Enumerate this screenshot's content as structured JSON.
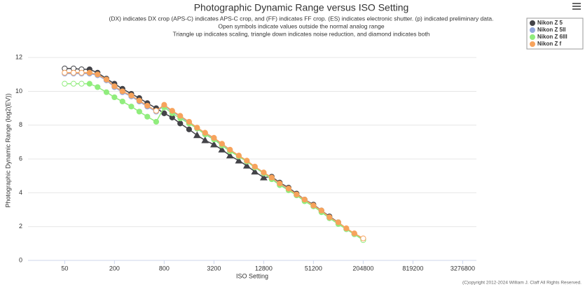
{
  "chart_data": {
    "type": "line",
    "title": "Photographic Dynamic Range versus ISO Setting",
    "subtitle": [
      "(DX) indicates DX crop (APS-C) indicates APS-C crop, and (FF) indicates FF crop. (ES) indicates electronic shutter. (p) indicated preliminary data.",
      "Open symbols indicate values outside the normal analog range",
      "Triangle up indicates scaling, triangle down indicates noise reduction, and diamond indicates both"
    ],
    "x_label": "ISO Setting",
    "y_label": "Photographic Dynamic Range (log2(EV))",
    "copyright": "(C)opyright 2012-2024 William J. Claff All Rights Reserved.",
    "log_x": true,
    "log_base": 2,
    "grid": true,
    "legend": "top-right",
    "x": [
      50,
      64,
      80,
      100,
      125,
      160,
      200,
      250,
      320,
      400,
      500,
      640,
      800,
      1000,
      1250,
      1600,
      2000,
      2500,
      3200,
      4000,
      5000,
      6400,
      8000,
      10000,
      12800,
      16000,
      20000,
      25600,
      32000,
      40000,
      51200,
      64000,
      80000,
      102400,
      128000,
      160000,
      204800
    ],
    "xlim": [
      18,
      4800000
    ],
    "xticks": [
      50,
      200,
      800,
      3200,
      12800,
      51200,
      204800,
      819200,
      3276800
    ],
    "ylim": [
      0,
      13
    ],
    "yticks": [
      0,
      2,
      4,
      6,
      8,
      10,
      12
    ],
    "series": [
      {
        "name": "Nikon Z 5",
        "color": "#434348",
        "values": [
          11.35,
          11.35,
          11.3,
          11.3,
          11.1,
          10.75,
          10.45,
          10.15,
          9.85,
          9.6,
          9.3,
          9.0,
          8.7,
          8.45,
          8.1,
          7.75,
          7.4,
          7.1,
          6.85,
          6.55,
          6.2,
          5.9,
          5.6,
          5.25,
          4.9,
          4.95,
          4.6,
          4.3,
          3.95,
          3.6,
          3.3,
          2.95,
          2.6,
          2.25,
          null,
          null,
          null
        ],
        "markers": [
          "open",
          "open",
          "open",
          "circle",
          "circle",
          "circle",
          "circle",
          "circle",
          "circle",
          "circle",
          "circle",
          "circle",
          "circle",
          "circle",
          "circle",
          "circle",
          "triangle",
          "triangle",
          "triangle",
          "triangle",
          "triangle",
          "triangle",
          "triangle",
          "triangle",
          "triangle",
          "circle",
          "circle",
          "circle",
          "circle",
          "circle",
          "circle",
          "circle",
          "circle",
          "open",
          null,
          null,
          null
        ]
      },
      {
        "name": "Nikon Z 5II",
        "color": "#92a8de",
        "values": [
          11.05,
          11.05,
          11.05,
          11.05,
          10.95,
          10.65,
          10.25,
          9.95,
          9.7,
          9.4,
          9.1,
          8.8,
          9.15,
          8.8,
          8.5,
          8.15,
          7.8,
          7.5,
          7.2,
          6.85,
          6.5,
          6.15,
          5.85,
          5.5,
          5.15,
          4.85,
          4.5,
          4.2,
          3.85,
          3.55,
          3.2,
          2.9,
          2.5,
          2.2,
          1.85,
          1.55,
          1.25
        ],
        "markers": [
          "open",
          "open",
          "open",
          "circle",
          "circle",
          "circle",
          "circle",
          "circle",
          "circle",
          "circle",
          "circle",
          "open",
          "circle",
          "circle",
          "circle",
          "circle",
          "circle",
          "circle",
          "circle",
          "circle",
          "circle",
          "circle",
          "circle",
          "circle",
          "circle",
          "circle",
          "circle",
          "circle",
          "circle",
          "circle",
          "circle",
          "circle",
          "circle",
          "circle",
          "circle",
          "circle",
          "open"
        ]
      },
      {
        "name": "Nikon Z 6III",
        "color": "#90ed7d",
        "values": [
          10.45,
          10.45,
          10.45,
          10.45,
          10.25,
          9.95,
          9.65,
          9.4,
          9.1,
          8.8,
          8.5,
          8.2,
          9.05,
          8.7,
          8.4,
          8.1,
          7.8,
          7.45,
          7.15,
          6.8,
          6.45,
          6.15,
          5.85,
          5.5,
          5.15,
          4.8,
          4.45,
          4.15,
          3.85,
          3.5,
          3.2,
          2.85,
          2.5,
          2.15,
          1.85,
          1.55,
          1.2
        ],
        "markers": [
          "open",
          "open",
          "open",
          "circle",
          "circle",
          "circle",
          "circle",
          "circle",
          "circle",
          "circle",
          "circle",
          "circle",
          "circle",
          "circle",
          "circle",
          "circle",
          "circle",
          "circle",
          "circle",
          "circle",
          "circle",
          "circle",
          "circle",
          "circle",
          "circle",
          "circle",
          "circle",
          "circle",
          "circle",
          "circle",
          "circle",
          "circle",
          "circle",
          "circle",
          "circle",
          "circle",
          "open"
        ]
      },
      {
        "name": "Nikon Z f",
        "color": "#f7a35c",
        "values": [
          11.1,
          11.1,
          11.1,
          11.1,
          11.0,
          10.7,
          10.3,
          10.0,
          9.75,
          9.45,
          9.15,
          8.85,
          9.2,
          8.85,
          8.55,
          8.2,
          7.85,
          7.55,
          7.25,
          6.9,
          6.55,
          6.2,
          5.9,
          5.55,
          5.2,
          4.9,
          4.55,
          4.25,
          3.9,
          3.6,
          3.25,
          2.95,
          2.55,
          2.25,
          1.9,
          1.6,
          1.3
        ],
        "markers": [
          "open",
          "open",
          "open",
          "circle",
          "circle",
          "circle",
          "circle",
          "circle",
          "circle",
          "circle",
          "circle",
          "open",
          "circle",
          "circle",
          "circle",
          "circle",
          "circle",
          "circle",
          "circle",
          "circle",
          "circle",
          "circle",
          "circle",
          "circle",
          "circle",
          "circle",
          "circle",
          "circle",
          "circle",
          "circle",
          "circle",
          "circle",
          "circle",
          "circle",
          "circle",
          "circle",
          "open"
        ]
      }
    ]
  }
}
